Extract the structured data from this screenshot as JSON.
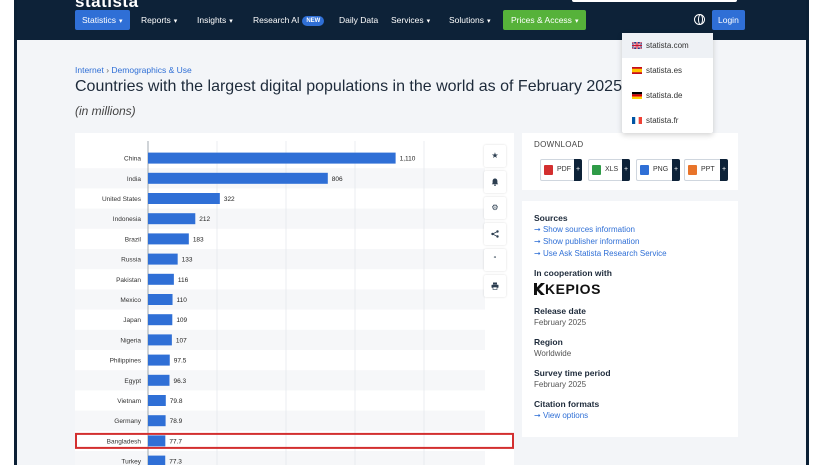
{
  "nav": {
    "logo": "statista",
    "items": [
      {
        "label": "Statistics",
        "chev": "▾"
      },
      {
        "label": "Reports",
        "chev": "▾"
      },
      {
        "label": "Insights",
        "chev": "▾"
      },
      {
        "label": "Research AI",
        "badge": "NEW"
      },
      {
        "label": "Daily Data"
      },
      {
        "label": "Services",
        "chev": "▾"
      },
      {
        "label": "Solutions",
        "chev": "▾"
      },
      {
        "label": "Prices & Access",
        "chev": "▾"
      }
    ],
    "login": "Login"
  },
  "lang_menu": [
    {
      "label": "statista.com",
      "flag": "uk"
    },
    {
      "label": "statista.es",
      "flag": "es"
    },
    {
      "label": "statista.de",
      "flag": "de"
    },
    {
      "label": "statista.fr",
      "flag": "fr"
    }
  ],
  "breadcrumb": {
    "parent": "Internet",
    "sep": "›",
    "child": "Demographics & Use"
  },
  "title": "Countries with the largest digital populations in the world as of February 2025",
  "subtitle": "(in millions)",
  "chart_data": {
    "type": "bar",
    "orientation": "horizontal",
    "categories": [
      "China",
      "India",
      "United States",
      "Indonesia",
      "Brazil",
      "Russia",
      "Pakistan",
      "Mexico",
      "Japan",
      "Nigeria",
      "Philippines",
      "Egypt",
      "Vietnam",
      "Germany",
      "Bangladesh",
      "Turkey"
    ],
    "values": [
      1110,
      806,
      322,
      212,
      183,
      133,
      116,
      110,
      109,
      107,
      97.5,
      96.3,
      79.8,
      78.9,
      77.7,
      77.3
    ],
    "labels": [
      "1,110",
      "806",
      "322",
      "212",
      "183",
      "133",
      "116",
      "110",
      "109",
      "107",
      "97.5",
      "96.3",
      "79.8",
      "78.9",
      "77.7",
      "77.3"
    ],
    "xlim": [
      0,
      1300
    ],
    "highlight": "Bangladesh",
    "bar_color": "#2f6fd6",
    "highlight_color": "#d32f2f"
  },
  "side_icons": [
    {
      "name": "star-icon",
      "glyph": "★"
    },
    {
      "name": "bell-icon",
      "glyph": "🔔"
    },
    {
      "name": "gear-icon",
      "glyph": "⚙"
    },
    {
      "name": "share-icon",
      "glyph": "<"
    },
    {
      "name": "quote-icon",
      "glyph": "“"
    },
    {
      "name": "print-icon",
      "glyph": "⎙"
    }
  ],
  "download": {
    "title": "DOWNLOAD",
    "buttons": [
      {
        "label": "PDF",
        "color": "#d32f2f",
        "plus": "+"
      },
      {
        "label": "XLS",
        "color": "#2e9b47",
        "plus": "+"
      },
      {
        "label": "PNG",
        "color": "#2f6fd6",
        "plus": "+"
      },
      {
        "label": "PPT",
        "color": "#e8742a",
        "plus": "+"
      }
    ]
  },
  "info": {
    "sources_h": "Sources",
    "links": [
      "Show sources information",
      "Show publisher information",
      "Use Ask Statista Research Service"
    ],
    "arrow": "➞",
    "coop_h": "In cooperation with",
    "kepios": "KEPIOS",
    "release_h": "Release date",
    "release_v": "February 2025",
    "region_h": "Region",
    "region_v": "Worldwide",
    "survey_h": "Survey time period",
    "survey_v": "February 2025",
    "citation_h": "Citation formats",
    "citation_link": "View options"
  },
  "colors": {
    "nav_bg": "#0d2238",
    "accent": "#2f6fd6",
    "green": "#56b23a"
  }
}
